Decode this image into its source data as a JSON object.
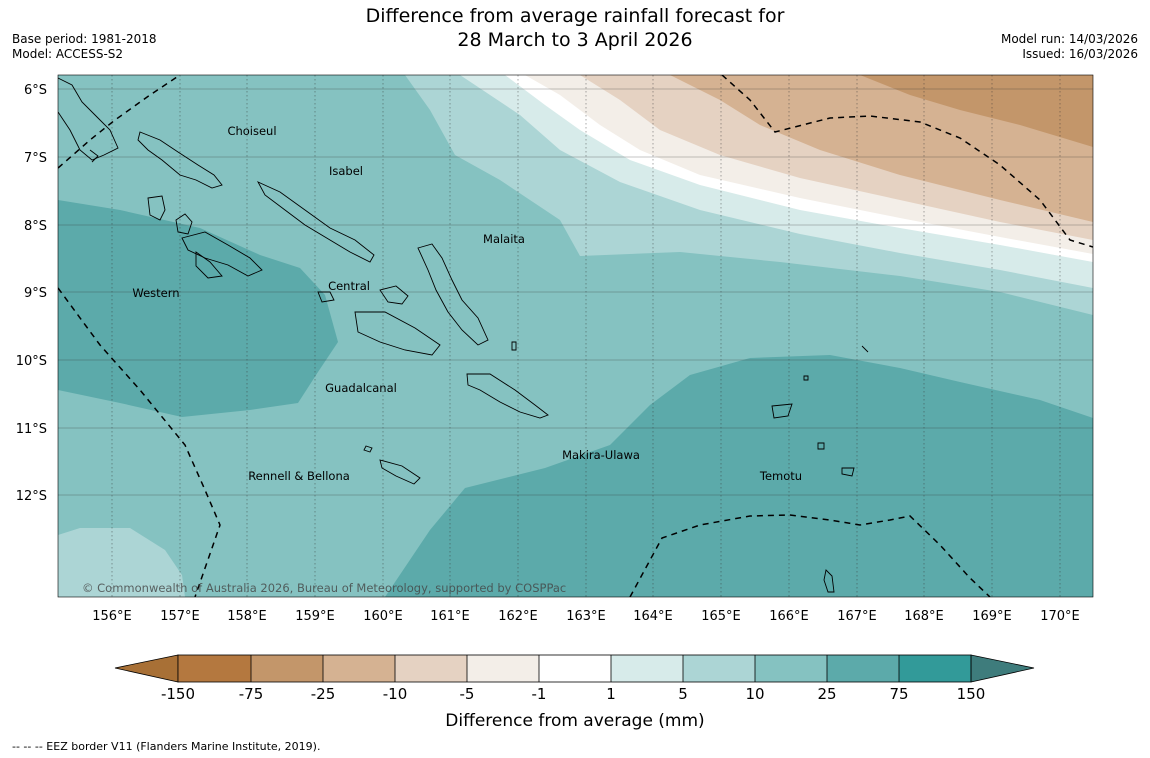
{
  "title": {
    "line1": "Difference from average rainfall forecast for",
    "line2": "28 March to 3 April 2026"
  },
  "meta_left": {
    "base_period": "Base period: 1981-2018",
    "model": "Model: ACCESS-S2"
  },
  "meta_right": {
    "model_run": "Model run: 14/03/2026",
    "issued": "Issued: 16/03/2026"
  },
  "map": {
    "lat_labels": [
      "6°S",
      "7°S",
      "8°S",
      "9°S",
      "10°S",
      "11°S",
      "12°S"
    ],
    "lon_labels": [
      "156°E",
      "157°E",
      "158°E",
      "159°E",
      "160°E",
      "161°E",
      "162°E",
      "163°E",
      "164°E",
      "165°E",
      "166°E",
      "167°E",
      "168°E",
      "169°E",
      "170°E"
    ],
    "place_labels": [
      "Choiseul",
      "Isabel",
      "Malaita",
      "Western",
      "Central",
      "Guadalcanal",
      "Makira-Ulawa",
      "Rennell & Bellona",
      "Temotu"
    ],
    "copyright": "© Commonwealth of Australia 2026, Bureau of Meteorology, supported by COSPPac"
  },
  "legend": {
    "ticks": [
      "-150",
      "-75",
      "-25",
      "-10",
      "-5",
      "-1",
      "1",
      "5",
      "10",
      "25",
      "75",
      "150"
    ],
    "colors": [
      "#a87036",
      "#b4783f",
      "#c3966a",
      "#d5b292",
      "#e5d2c2",
      "#f3eee8",
      "#ffffff",
      "#d7ebea",
      "#acd5d5",
      "#85c2c1",
      "#5caaaa",
      "#329a99",
      "#3e7c7c"
    ],
    "title": "Difference from average (mm)"
  },
  "footnote": "--  --  -- EEZ border V11 (Flanders Marine Institute, 2019)."
}
